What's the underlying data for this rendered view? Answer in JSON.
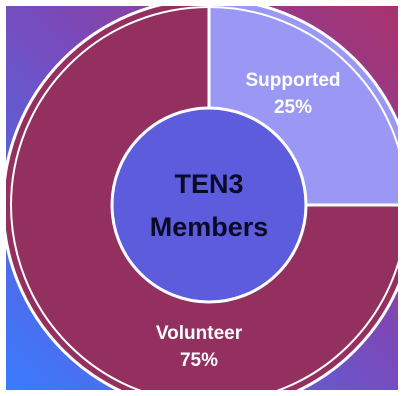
{
  "chart_data": {
    "type": "pie",
    "variant": "donut",
    "center_label_lines": [
      "TEN3",
      "Members"
    ],
    "slices": [
      {
        "label": "Supported",
        "percent_label": "25%",
        "value": 25,
        "color": "#9a98f4"
      },
      {
        "label": "Volunteer",
        "percent_label": "75%",
        "value": 75,
        "color": "#93305f"
      }
    ],
    "center_color": "#5d5cdc",
    "center_text_color": "#0a0a2a",
    "slice_text_color": "#ffffff",
    "background_gradient": [
      "#3a7bff",
      "#7b49b9",
      "#a8326b"
    ],
    "outline_color": "#ffffff"
  }
}
